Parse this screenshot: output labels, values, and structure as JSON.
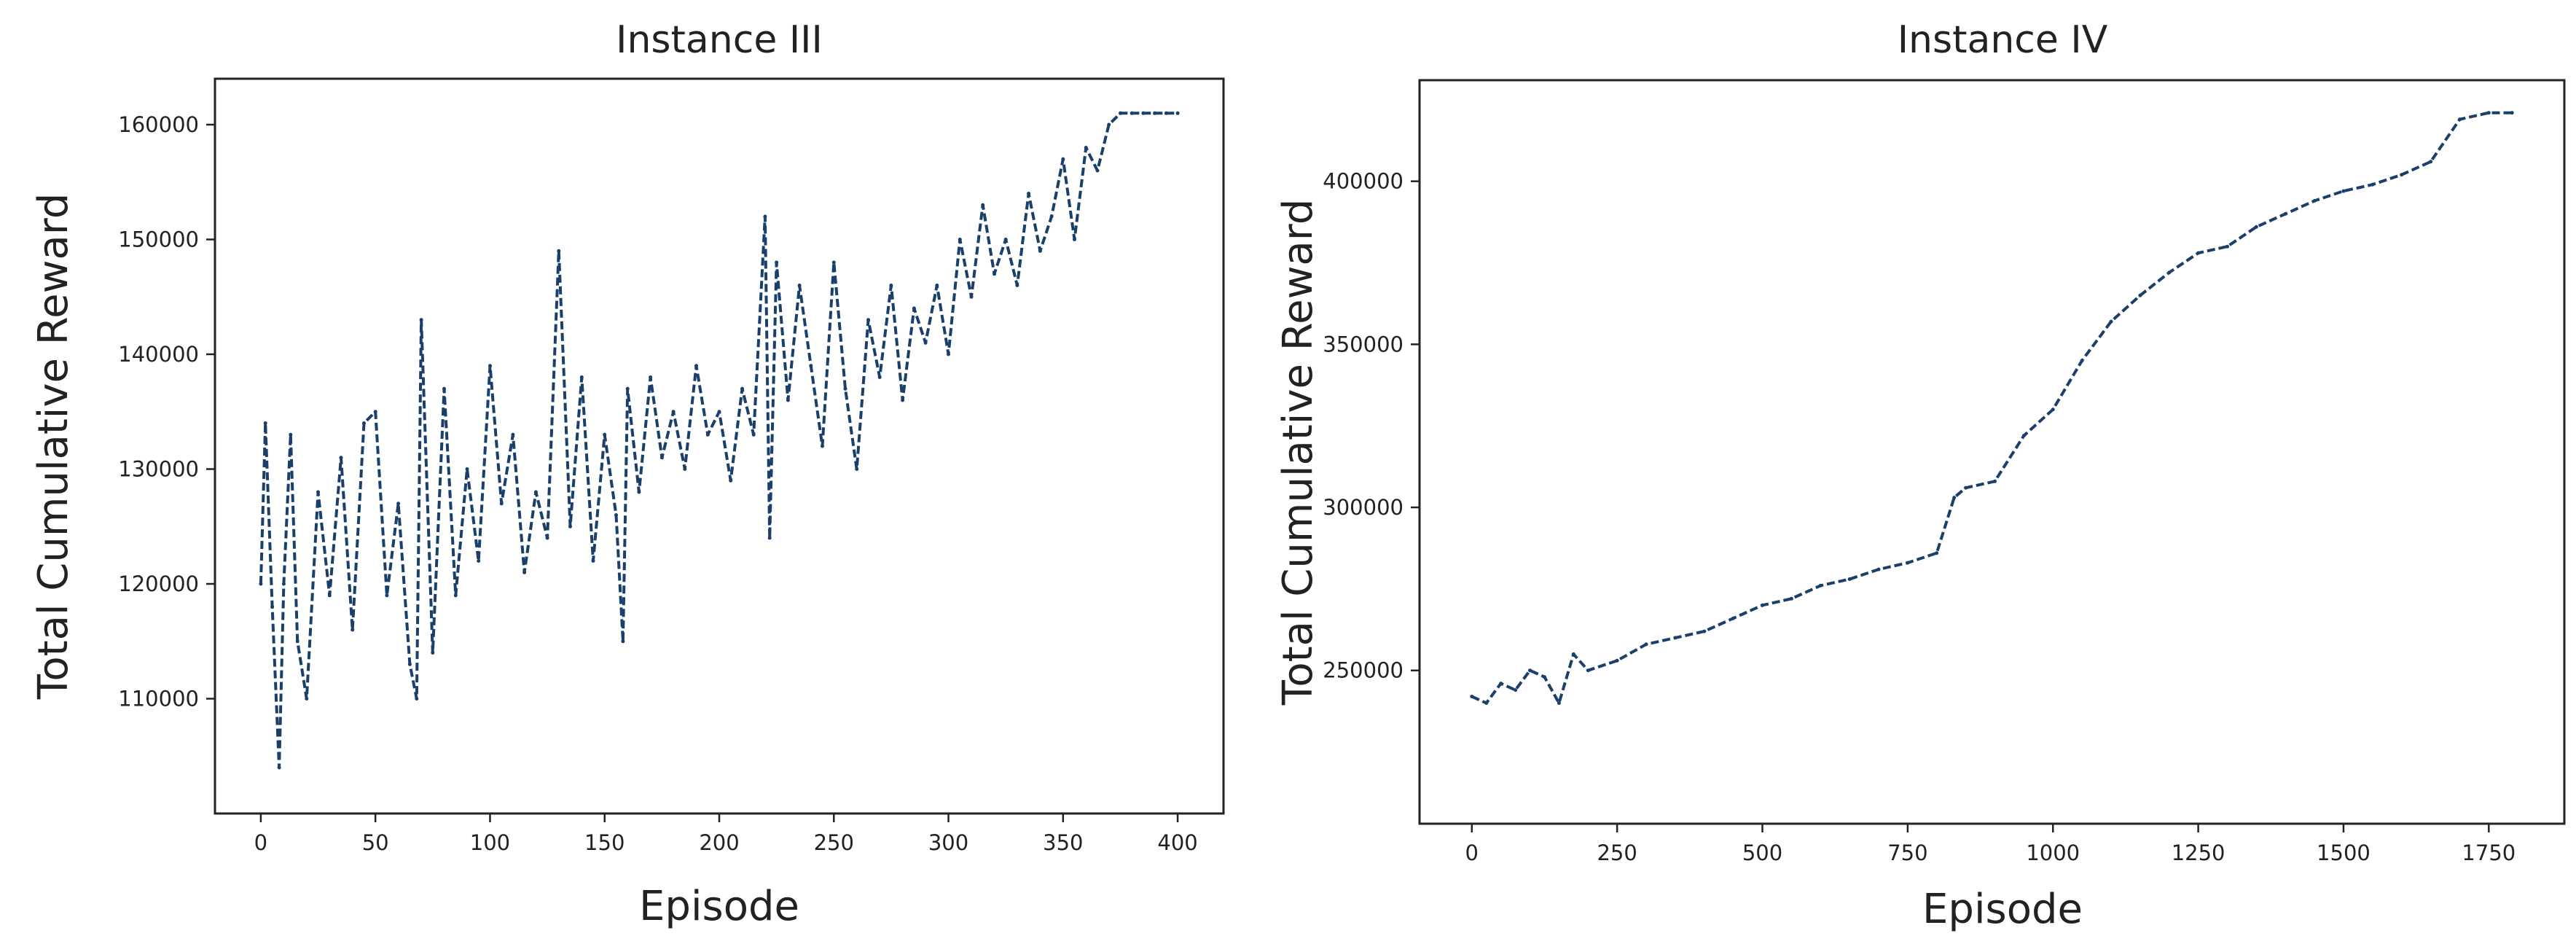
{
  "chart_data": [
    {
      "type": "line",
      "title": "Instance III",
      "xlabel": "Episode",
      "ylabel": "Total Cumulative Reward",
      "xlim": [
        -20,
        420
      ],
      "ylim": [
        100000,
        164000
      ],
      "xticks": [
        0,
        50,
        100,
        150,
        200,
        250,
        300,
        350,
        400
      ],
      "yticks": [
        110000,
        120000,
        130000,
        140000,
        150000,
        160000
      ],
      "xtick_labels": [
        "0",
        "50",
        "100",
        "150",
        "200",
        "250",
        "300",
        "350",
        "400"
      ],
      "ytick_labels": [
        "110000",
        "120000",
        "130000",
        "140000",
        "150000",
        "160000"
      ],
      "grid": false,
      "color": "#1b3f6b",
      "series": [
        {
          "x": [
            0,
            2,
            5,
            8,
            10,
            13,
            16,
            20,
            25,
            30,
            35,
            40,
            45,
            50,
            55,
            60,
            65,
            68,
            70,
            75,
            80,
            85,
            90,
            95,
            100,
            105,
            110,
            115,
            120,
            125,
            130,
            135,
            140,
            145,
            150,
            155,
            158,
            160,
            165,
            170,
            175,
            180,
            185,
            190,
            195,
            200,
            205,
            210,
            215,
            220,
            222,
            225,
            230,
            235,
            240,
            245,
            250,
            255,
            260,
            265,
            270,
            275,
            280,
            285,
            290,
            295,
            300,
            305,
            310,
            315,
            320,
            325,
            330,
            335,
            340,
            345,
            350,
            355,
            360,
            365,
            370,
            375,
            380,
            385,
            390,
            395,
            400
          ],
          "values": [
            120000,
            134000,
            118000,
            104000,
            120000,
            133000,
            115000,
            110000,
            128000,
            119000,
            131000,
            116000,
            134000,
            135000,
            119000,
            127000,
            113000,
            110000,
            143000,
            114000,
            137000,
            119000,
            130000,
            122000,
            139000,
            127000,
            133000,
            121000,
            128000,
            124000,
            149000,
            125000,
            138000,
            122000,
            133000,
            126000,
            115000,
            137000,
            128000,
            138000,
            131000,
            135000,
            130000,
            139000,
            133000,
            135000,
            129000,
            137000,
            133000,
            152000,
            124000,
            148000,
            136000,
            146000,
            139000,
            132000,
            148000,
            137000,
            130000,
            143000,
            138000,
            146000,
            136000,
            144000,
            141000,
            146000,
            140000,
            150000,
            145000,
            153000,
            147000,
            150000,
            146000,
            154000,
            149000,
            152000,
            157000,
            150000,
            158000,
            156000,
            160000,
            161000,
            161000,
            161000,
            161000,
            161000,
            161000
          ]
        }
      ]
    },
    {
      "type": "line",
      "title": "Instance IV",
      "xlabel": "Episode",
      "ylabel": "Total Cumulative Reward",
      "xlim": [
        -90,
        1880
      ],
      "ylim": [
        203000,
        431000
      ],
      "xticks": [
        0,
        250,
        500,
        750,
        1000,
        1250,
        1500,
        1750
      ],
      "yticks": [
        250000,
        300000,
        350000,
        400000
      ],
      "xtick_labels": [
        "0",
        "250",
        "500",
        "750",
        "1000",
        "1250",
        "1500",
        "1750"
      ],
      "ytick_labels": [
        "250000",
        "300000",
        "350000",
        "400000"
      ],
      "grid": false,
      "color": "#1b3f6b",
      "series": [
        {
          "x": [
            0,
            25,
            50,
            75,
            100,
            125,
            150,
            175,
            200,
            250,
            300,
            350,
            400,
            450,
            500,
            550,
            600,
            650,
            700,
            750,
            800,
            830,
            850,
            900,
            950,
            1000,
            1050,
            1100,
            1150,
            1200,
            1250,
            1300,
            1350,
            1400,
            1450,
            1500,
            1550,
            1600,
            1650,
            1700,
            1750,
            1790
          ],
          "values": [
            242000,
            240000,
            246000,
            244000,
            250000,
            248000,
            240000,
            255000,
            250000,
            253000,
            258000,
            260000,
            262000,
            266000,
            270000,
            272000,
            276000,
            278000,
            281000,
            283000,
            286000,
            303000,
            306000,
            308000,
            322000,
            330000,
            345000,
            357000,
            365000,
            372000,
            378000,
            380000,
            386000,
            390000,
            394000,
            397000,
            399000,
            402000,
            406000,
            419000,
            421000,
            421000
          ]
        }
      ]
    }
  ]
}
